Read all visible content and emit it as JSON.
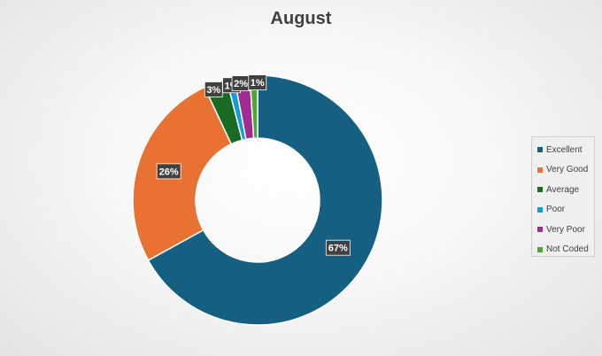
{
  "chart_data": {
    "type": "pie",
    "title": "August",
    "donut": true,
    "categories": [
      "Excellent",
      "Very Good",
      "Average",
      "Poor",
      "Very Poor",
      "Not Coded"
    ],
    "values": [
      67,
      26,
      3,
      1,
      2,
      1
    ],
    "data_labels": [
      "67%",
      "26%",
      "3%",
      "1%",
      "2%",
      "1%"
    ],
    "colors": [
      "#156082",
      "#E97132",
      "#196B24",
      "#0F9ED5",
      "#A02B93",
      "#4EA72E"
    ],
    "legend_position": "right"
  }
}
